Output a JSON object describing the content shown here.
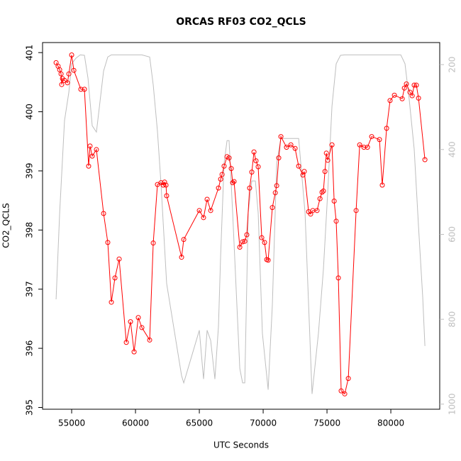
{
  "chart_data": {
    "type": "line",
    "title": "ORCAS RF03 CO2_QCLS",
    "x_label": "UTC Seconds",
    "y_label": "CO2_QCLS",
    "xlim": [
      52720,
      83830
    ],
    "ylim": [
      394.97,
      401.17
    ],
    "y2lim": [
      1012,
      148
    ],
    "xticks": [
      55000,
      60000,
      65000,
      70000,
      75000,
      80000
    ],
    "yticks": [
      395,
      396,
      397,
      398,
      399,
      400,
      401
    ],
    "y2ticks": [
      200,
      400,
      600,
      800,
      1000
    ],
    "series": [
      {
        "color": "#ff0000",
        "markers": true,
        "x": [
          53780,
          53940,
          54060,
          54170,
          54220,
          54280,
          54440,
          54670,
          54780,
          55000,
          55170,
          55720,
          56000,
          56330,
          56440,
          56610,
          56940,
          57500,
          57830,
          58110,
          58390,
          58720,
          59280,
          59610,
          59890,
          60220,
          60500,
          61110,
          61390,
          61720,
          62000,
          62170,
          62280,
          62390,
          62440,
          63610,
          63780,
          65000,
          65330,
          65610,
          65890,
          66500,
          66670,
          66780,
          66940,
          67170,
          67330,
          67500,
          67610,
          67720,
          68170,
          68390,
          68560,
          68720,
          68940,
          69110,
          69280,
          69440,
          69610,
          69890,
          70110,
          70280,
          70390,
          70720,
          70950,
          71060,
          71220,
          71390,
          71830,
          72170,
          72500,
          72780,
          73110,
          73220,
          73560,
          73720,
          73890,
          74220,
          74450,
          74610,
          74720,
          74840,
          74950,
          75060,
          75390,
          75560,
          75720,
          75890,
          76110,
          76390,
          76670,
          77280,
          77560,
          77890,
          78170,
          78500,
          79110,
          79330,
          79670,
          79940,
          80280,
          80890,
          81060,
          81220,
          81500,
          81670,
          81830,
          82000,
          82170,
          82670
        ],
        "values": [
          400.83,
          400.77,
          400.71,
          400.64,
          400.46,
          400.56,
          400.53,
          400.49,
          400.64,
          400.96,
          400.7,
          400.38,
          400.38,
          399.08,
          399.42,
          399.25,
          399.36,
          398.28,
          397.79,
          396.78,
          397.19,
          397.51,
          396.1,
          396.45,
          395.94,
          396.52,
          396.35,
          396.14,
          397.78,
          398.77,
          398.8,
          398.76,
          398.81,
          398.76,
          398.58,
          397.54,
          397.84,
          398.33,
          398.21,
          398.52,
          398.33,
          398.71,
          398.86,
          398.94,
          399.08,
          399.24,
          399.22,
          399.04,
          398.8,
          398.82,
          397.71,
          397.8,
          397.81,
          397.92,
          398.71,
          398.98,
          399.32,
          399.17,
          399.07,
          397.87,
          397.79,
          397.5,
          397.49,
          398.38,
          398.63,
          398.75,
          399.22,
          399.58,
          399.4,
          399.44,
          399.38,
          399.08,
          398.93,
          398.99,
          398.31,
          398.27,
          398.33,
          398.33,
          398.53,
          398.64,
          398.66,
          398.99,
          399.3,
          399.18,
          399.44,
          398.49,
          398.15,
          397.19,
          395.28,
          395.23,
          395.49,
          398.33,
          399.44,
          399.4,
          399.4,
          399.58,
          399.53,
          398.76,
          399.72,
          400.19,
          400.28,
          400.22,
          400.4,
          400.47,
          400.33,
          400.27,
          400.45,
          400.45,
          400.23,
          399.19
        ]
      },
      {
        "color": "#bebebe",
        "axis": "y2",
        "markers": false,
        "x": [
          53780,
          54060,
          54440,
          54780,
          55000,
          55330,
          55670,
          56000,
          56280,
          56610,
          56940,
          57500,
          57830,
          58110,
          60500,
          61110,
          61390,
          61720,
          62000,
          62440,
          63610,
          63780,
          65000,
          65330,
          65610,
          65890,
          66220,
          66500,
          66670,
          66940,
          67170,
          67330,
          67610,
          68170,
          68390,
          68560,
          68830,
          69110,
          69390,
          69610,
          69940,
          70390,
          70720,
          71060,
          71390,
          72780,
          73280,
          73830,
          74330,
          74720,
          75060,
          75390,
          75720,
          76060,
          76390,
          80780,
          81110,
          81440,
          81830,
          82170,
          82500,
          82670
        ],
        "values": [
          753,
          549,
          332,
          265,
          198,
          185,
          177,
          178,
          232,
          344,
          359,
          215,
          182,
          177,
          177,
          182,
          248,
          357,
          482,
          716,
          933,
          950,
          826,
          941,
          826,
          850,
          941,
          816,
          649,
          432,
          379,
          379,
          549,
          916,
          950,
          950,
          549,
          474,
          474,
          549,
          833,
          966,
          766,
          432,
          374,
          374,
          549,
          976,
          833,
          682,
          499,
          298,
          198,
          178,
          177,
          177,
          198,
          282,
          399,
          582,
          749,
          863
        ]
      }
    ]
  }
}
